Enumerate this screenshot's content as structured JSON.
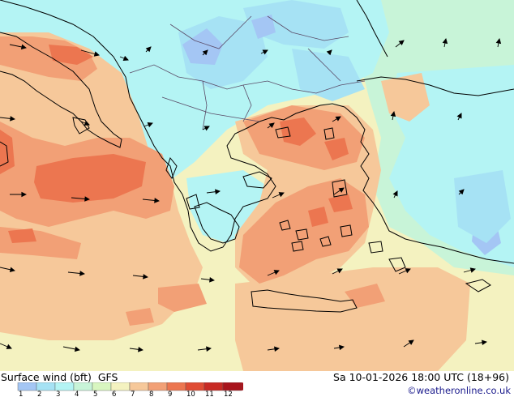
{
  "legend": {
    "title": "Surface wind (bft)",
    "model": "GFS",
    "scale": [
      {
        "label": "1",
        "color": "#a4c6f4"
      },
      {
        "label": "2",
        "color": "#a6e2f4"
      },
      {
        "label": "3",
        "color": "#b4f4f4"
      },
      {
        "label": "4",
        "color": "#c8f4d8"
      },
      {
        "label": "5",
        "color": "#d8f6c0"
      },
      {
        "label": "6",
        "color": "#f4f2c0"
      },
      {
        "label": "7",
        "color": "#f6c89a"
      },
      {
        "label": "8",
        "color": "#f2a076"
      },
      {
        "label": "9",
        "color": "#ec7650"
      },
      {
        "label": "10",
        "color": "#e04c34"
      },
      {
        "label": "11",
        "color": "#c82a24"
      },
      {
        "label": "12",
        "color": "#a8141c"
      }
    ]
  },
  "valid_time": "Sa 10-01-2026 18:00 UTC (18+96)",
  "copyright": "©weatheronline.co.uk",
  "colors": {
    "coastline": "#000000",
    "border": "#5a4a66",
    "arrow": "#000000"
  }
}
